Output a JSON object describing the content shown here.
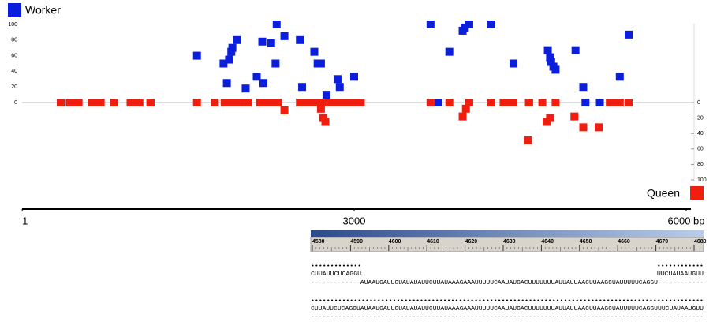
{
  "chart_data": {
    "type": "scatter",
    "xlim": [
      0,
      6000
    ],
    "xticks": [
      {
        "value": 1,
        "label": "1"
      },
      {
        "value": 3000,
        "label": "3000"
      },
      {
        "value": 6000,
        "label": "6000 bp"
      }
    ],
    "ylim": [
      0,
      100
    ],
    "yticks": [
      0,
      20,
      40,
      60,
      80,
      100
    ],
    "y2lim": [
      0,
      100
    ],
    "y2ticks": [
      0,
      20,
      40,
      60,
      80,
      100
    ],
    "y2_reversed": true,
    "series": [
      {
        "name": "Worker",
        "color": "#0a1edc",
        "x": [
          350,
          440,
          510,
          630,
          690,
          830,
          980,
          1040,
          1160,
          1580,
          1820,
          1850,
          1870,
          1890,
          1900,
          1940,
          2020,
          2120,
          2170,
          2180,
          2250,
          2290,
          2300,
          2370,
          2510,
          2530,
          2640,
          2670,
          2700,
          2720,
          2750,
          2850,
          2870,
          3000,
          3690,
          3760,
          3860,
          3980,
          4000,
          4040,
          4240,
          4440,
          4580,
          4750,
          4770,
          4780,
          4800,
          4820,
          5000,
          5070,
          5090,
          5220,
          5400,
          5480
        ],
        "values": [
          0,
          0,
          0,
          0,
          0,
          0,
          0,
          0,
          0,
          60,
          50,
          25,
          55,
          65,
          70,
          80,
          18,
          33,
          78,
          25,
          76,
          50,
          100,
          85,
          80,
          20,
          65,
          50,
          50,
          0,
          10,
          30,
          20,
          33,
          100,
          0,
          65,
          92,
          96,
          100,
          100,
          50,
          0,
          67,
          58,
          52,
          46,
          42,
          67,
          20,
          0,
          0,
          33,
          87
        ]
      },
      {
        "name": "Queen",
        "color": "#f01e0f",
        "axis": "y2",
        "x": [
          350,
          430,
          480,
          510,
          630,
          670,
          710,
          830,
          980,
          1030,
          1060,
          1160,
          1580,
          1740,
          1830,
          1880,
          1920,
          1970,
          2040,
          2150,
          2200,
          2240,
          2270,
          2310,
          2370,
          2510,
          2570,
          2620,
          2690,
          2700,
          2720,
          2740,
          2760,
          2820,
          2850,
          2890,
          2940,
          3010,
          3060,
          3690,
          3860,
          3980,
          4010,
          4040,
          4240,
          4350,
          4400,
          4440,
          4570,
          4580,
          4700,
          4740,
          4770,
          4820,
          4990,
          5070,
          5210,
          5310,
          5350,
          5400,
          5480
        ],
        "values": [
          0,
          0,
          0,
          0,
          0,
          0,
          0,
          0,
          0,
          0,
          0,
          0,
          0,
          0,
          0,
          0,
          0,
          0,
          0,
          0,
          0,
          0,
          0,
          0,
          10,
          0,
          0,
          0,
          0,
          8,
          20,
          25,
          0,
          0,
          0,
          0,
          0,
          0,
          0,
          0,
          0,
          18,
          8,
          0,
          0,
          0,
          0,
          0,
          49,
          0,
          0,
          25,
          20,
          0,
          18,
          32,
          32,
          0,
          0,
          0,
          0
        ]
      }
    ]
  },
  "alignment": {
    "ruler_ticks": [
      4580,
      4590,
      4600,
      4610,
      4620,
      4630,
      4640,
      4650,
      4660,
      4670,
      4680
    ],
    "rows": [
      "•••••••••••••                                                                            ••••••••••••",
      "CUUAUUCUCAGGU                                                                            UUCUAUAAUGUU",
      "-------------AUAAUGAUUGUAUAUAUUCUUAUAAAGAAAUUUUUCAAUAUGACUUUUUUUAUUAUUAACUUAAGCUAUUUUUCAGGU------------",
      "•••••••••••••••••••••••••••••••••••••••••••••••••••••••••••••••••••••••••••••••••••••••••••••••••••••",
      "CUUAUUCUCAGGUAUAAUGAUUGUAUAUAUUCUUAUAAAGAAAUUUUUCAAUAUGACUUUUUUUAUUAUUAACUUAAGCUAUUUUUCAGGUUUCUAUAAUGUU",
      "-----------------------------------------------------------------------------------------------------"
    ]
  }
}
